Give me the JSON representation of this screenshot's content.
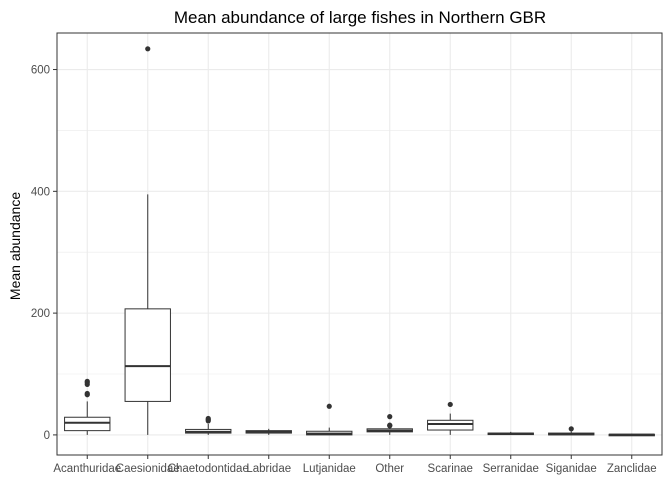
{
  "chart_data": {
    "type": "boxplot",
    "title": "Mean abundance of large fishes in Northern GBR",
    "xlabel": "",
    "ylabel": "Mean abundance",
    "ylim": [
      -33,
      660
    ],
    "yticks": [
      0,
      200,
      400,
      600
    ],
    "grid": true,
    "legend": "none",
    "categories": [
      "Acanthuridae",
      "Caesionidae",
      "Chaetodontidae",
      "Labridae",
      "Lutjanidae",
      "Other",
      "Scarinae",
      "Serranidae",
      "Siganidae",
      "Zanclidae"
    ],
    "boxes": [
      {
        "category": "Acanthuridae",
        "whisker_low": 0,
        "q1": 7,
        "median": 20,
        "q3": 29,
        "whisker_high": 55,
        "outliers": [
          66,
          68,
          83,
          86,
          88
        ]
      },
      {
        "category": "Caesionidae",
        "whisker_low": 0,
        "q1": 55,
        "median": 113,
        "q3": 207,
        "whisker_high": 395,
        "outliers": [
          634
        ]
      },
      {
        "category": "Chaetodontidae",
        "whisker_low": 0,
        "q1": 3,
        "median": 5,
        "q3": 9,
        "whisker_high": 18,
        "outliers": [
          23,
          25,
          27
        ]
      },
      {
        "category": "Labridae",
        "whisker_low": 0,
        "q1": 3,
        "median": 5,
        "q3": 7,
        "whisker_high": 10,
        "outliers": []
      },
      {
        "category": "Lutjanidae",
        "whisker_low": 0,
        "q1": 0,
        "median": 2,
        "q3": 6,
        "whisker_high": 12,
        "outliers": [
          47
        ]
      },
      {
        "category": "Other",
        "whisker_low": 0,
        "q1": 5,
        "median": 7,
        "q3": 10,
        "whisker_high": 13,
        "outliers": [
          15,
          16,
          30
        ]
      },
      {
        "category": "Scarinae",
        "whisker_low": 0,
        "q1": 8,
        "median": 18,
        "q3": 24,
        "whisker_high": 35,
        "outliers": [
          50
        ]
      },
      {
        "category": "Serranidae",
        "whisker_low": 0,
        "q1": 1,
        "median": 2,
        "q3": 3,
        "whisker_high": 5,
        "outliers": []
      },
      {
        "category": "Siganidae",
        "whisker_low": 0,
        "q1": 0,
        "median": 1,
        "q3": 3,
        "whisker_high": 6,
        "outliers": [
          10
        ]
      },
      {
        "category": "Zanclidae",
        "whisker_low": 0,
        "q1": 0,
        "median": 0.5,
        "q3": 1,
        "whisker_high": 2,
        "outliers": []
      }
    ],
    "colors": {
      "panel_border": "#333333",
      "grid": "#ebebeb",
      "box_fill": "#ffffff",
      "box_line": "#333333",
      "outlier": "#333333"
    }
  }
}
